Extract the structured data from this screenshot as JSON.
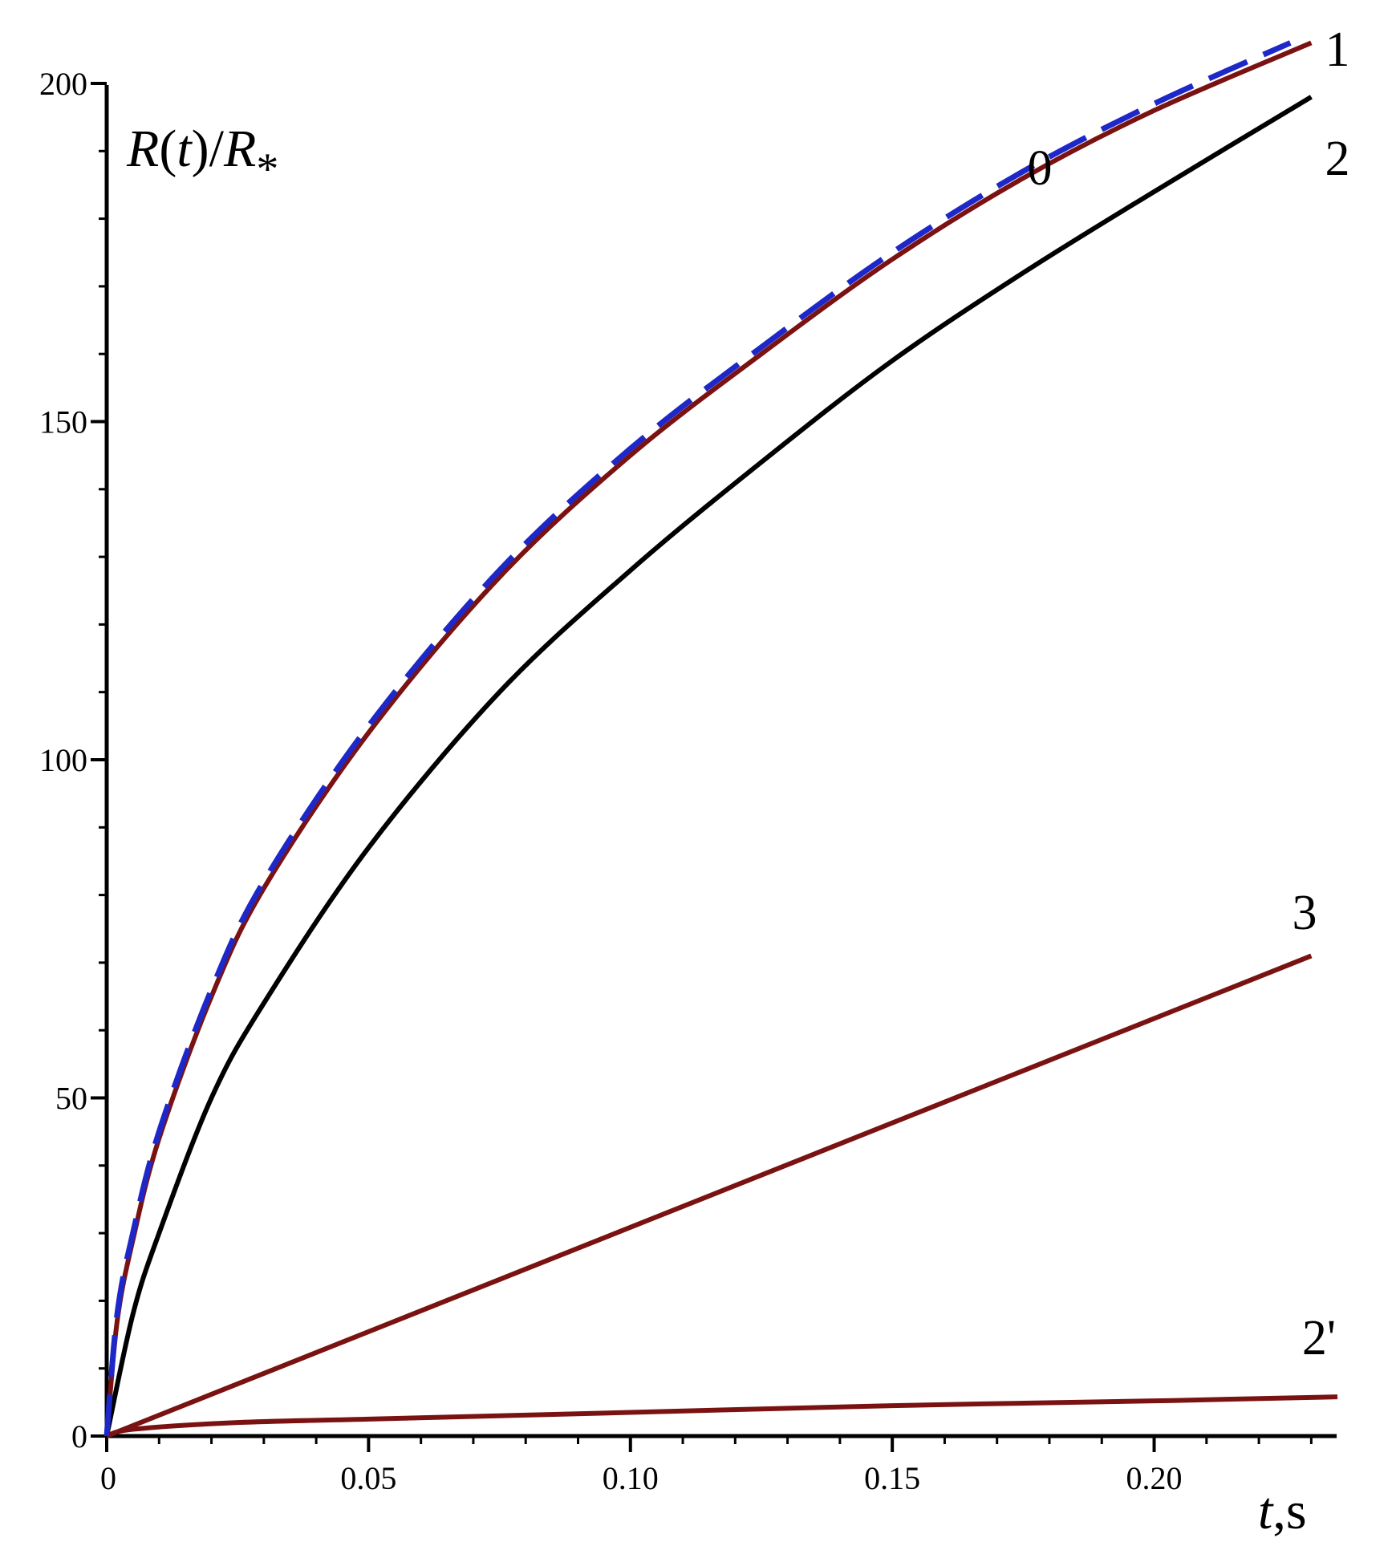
{
  "chart_data": {
    "type": "line",
    "ylabel": {
      "base": "R",
      "open": "(",
      "arg": "t",
      "close": ")/",
      "denom": "R",
      "sub": "*"
    },
    "xlabel": {
      "var": "t",
      "sep": ",",
      "unit": "s"
    },
    "xlim": [
      0,
      0.235
    ],
    "ylim": [
      0,
      200
    ],
    "x_ticks": [
      {
        "value": 0,
        "label": "0"
      },
      {
        "value": 0.05,
        "label": "0.05"
      },
      {
        "value": 0.1,
        "label": "0.10"
      },
      {
        "value": 0.15,
        "label": "0.15"
      },
      {
        "value": 0.2,
        "label": "0.20"
      }
    ],
    "y_ticks": [
      {
        "value": 0,
        "label": "0"
      },
      {
        "value": 50,
        "label": "50"
      },
      {
        "value": 100,
        "label": "100"
      },
      {
        "value": 150,
        "label": "150"
      },
      {
        "value": 200,
        "label": "200"
      }
    ],
    "series": [
      {
        "label": "0",
        "color": "#1e28c8",
        "dashed": true,
        "x_end": 0.226,
        "points": [
          [
            0.0,
            0
          ],
          [
            0.002,
            18
          ],
          [
            0.005,
            30
          ],
          [
            0.01,
            45
          ],
          [
            0.02,
            66
          ],
          [
            0.03,
            82
          ],
          [
            0.05,
            105
          ],
          [
            0.075,
            128
          ],
          [
            0.1,
            146
          ],
          [
            0.125,
            161
          ],
          [
            0.15,
            175
          ],
          [
            0.175,
            187
          ],
          [
            0.2,
            197
          ],
          [
            0.226,
            206
          ]
        ]
      },
      {
        "label": "1",
        "color": "#7a1212",
        "dashed": false,
        "x_end": 0.23,
        "points": [
          [
            0.0,
            0
          ],
          [
            0.002,
            17
          ],
          [
            0.005,
            29
          ],
          [
            0.01,
            44
          ],
          [
            0.02,
            65
          ],
          [
            0.03,
            81
          ],
          [
            0.05,
            104
          ],
          [
            0.075,
            127
          ],
          [
            0.1,
            145
          ],
          [
            0.125,
            160
          ],
          [
            0.15,
            174
          ],
          [
            0.175,
            186
          ],
          [
            0.2,
            196
          ],
          [
            0.23,
            206
          ]
        ]
      },
      {
        "label": "2",
        "color": "#000000",
        "dashed": false,
        "x_end": 0.23,
        "points": [
          [
            0.0,
            0
          ],
          [
            0.005,
            18
          ],
          [
            0.01,
            30
          ],
          [
            0.02,
            50
          ],
          [
            0.03,
            64
          ],
          [
            0.05,
            87
          ],
          [
            0.075,
            110
          ],
          [
            0.1,
            128
          ],
          [
            0.125,
            144
          ],
          [
            0.15,
            159
          ],
          [
            0.175,
            172
          ],
          [
            0.2,
            184
          ],
          [
            0.23,
            198
          ]
        ]
      },
      {
        "label": "3",
        "color": "#7a1212",
        "dashed": false,
        "x_end": 0.23,
        "points": [
          [
            0.0,
            0
          ],
          [
            0.23,
            71
          ]
        ]
      },
      {
        "label": "2'",
        "color": "#7a1212",
        "dashed": false,
        "x_end": 0.235,
        "points": [
          [
            0.0,
            0
          ],
          [
            0.005,
            1
          ],
          [
            0.025,
            2
          ],
          [
            0.05,
            2.5
          ],
          [
            0.1,
            3.5
          ],
          [
            0.15,
            4.5
          ],
          [
            0.2,
            5.2
          ],
          [
            0.235,
            5.8
          ]
        ]
      }
    ]
  }
}
